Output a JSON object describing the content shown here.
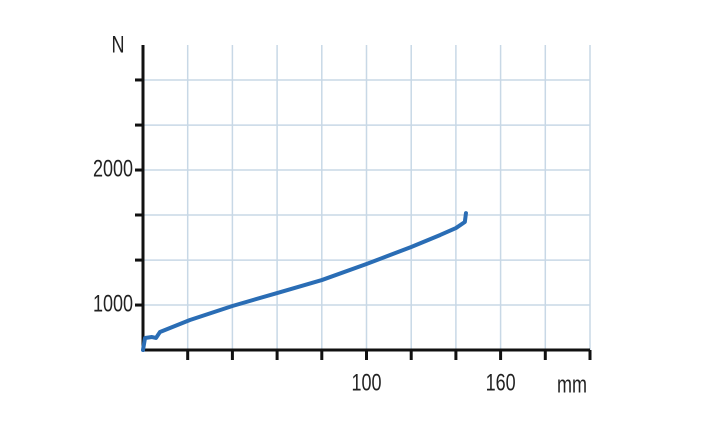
{
  "chart_data": {
    "type": "line",
    "y_unit": "N",
    "x_unit": "mm",
    "x": [
      0,
      0.9,
      4,
      5.8,
      7.6,
      21,
      40,
      60,
      80,
      100,
      120,
      133,
      140,
      144,
      144.5
    ],
    "series": [
      {
        "color": "#2a6db5",
        "values": [
          667,
          756,
          763,
          756,
          800,
          889,
          993,
          1089,
          1185,
          1304,
          1430,
          1519,
          1570,
          1615,
          1681
        ]
      }
    ],
    "xlim": [
      0,
      200
    ],
    "ylim": [
      667,
      2926
    ],
    "xticks": [
      100,
      160
    ],
    "yticks": [
      1000,
      2000
    ],
    "xgrid": [
      20,
      40,
      60,
      80,
      100,
      120,
      140,
      160,
      180,
      200
    ],
    "ygrid": [
      1000,
      1333,
      1667,
      2000,
      2333,
      2667
    ],
    "grid": true,
    "grid_color": "#c8d8e6"
  }
}
